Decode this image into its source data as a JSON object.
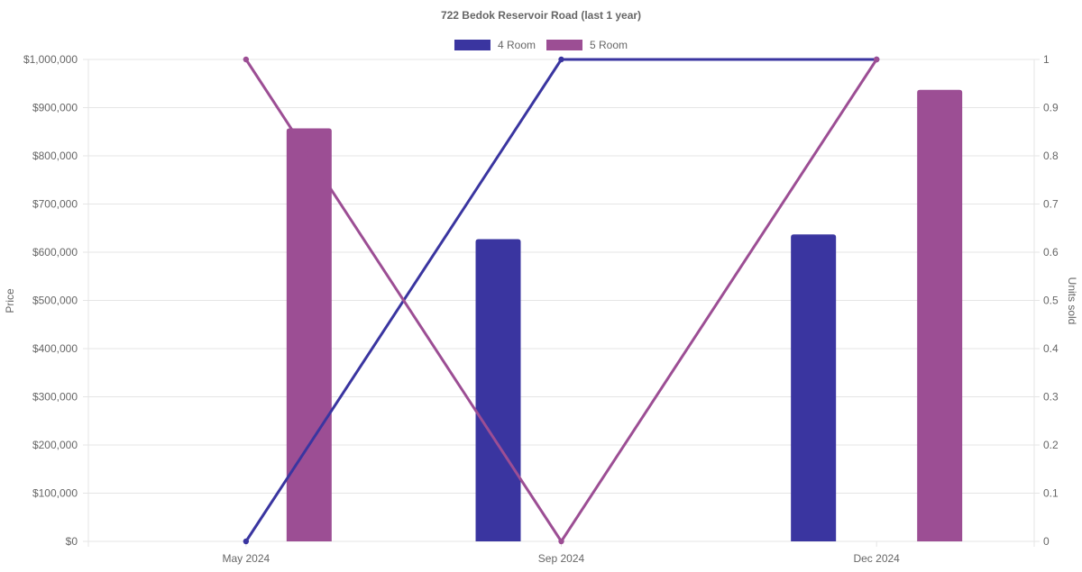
{
  "chart_data": {
    "type": "bar",
    "title": "722 Bedok Reservoir Road (last 1 year)",
    "categories": [
      "May 2024",
      "Sep 2024",
      "Dec 2024"
    ],
    "y_left": {
      "label": "Price",
      "range": [
        0,
        1000000
      ],
      "ticks": [
        "$0",
        "$100,000",
        "$200,000",
        "$300,000",
        "$400,000",
        "$500,000",
        "$600,000",
        "$700,000",
        "$800,000",
        "$900,000",
        "$1,000,000"
      ]
    },
    "y_right": {
      "label": "Units sold",
      "range": [
        0,
        1
      ],
      "ticks": [
        "0",
        "0.1",
        "0.2",
        "0.3",
        "0.4",
        "0.5",
        "0.6",
        "0.7",
        "0.8",
        "0.9",
        "1"
      ]
    },
    "grid": true,
    "legend_position": "top-center",
    "series": [
      {
        "name": "4 Room",
        "color": "#3a35a0",
        "price": [
          null,
          627000,
          637000
        ],
        "units_sold": [
          0,
          1,
          1
        ]
      },
      {
        "name": "5 Room",
        "color": "#9c4e94",
        "price": [
          857000,
          null,
          937000
        ],
        "units_sold": [
          1,
          0,
          1
        ]
      }
    ]
  }
}
